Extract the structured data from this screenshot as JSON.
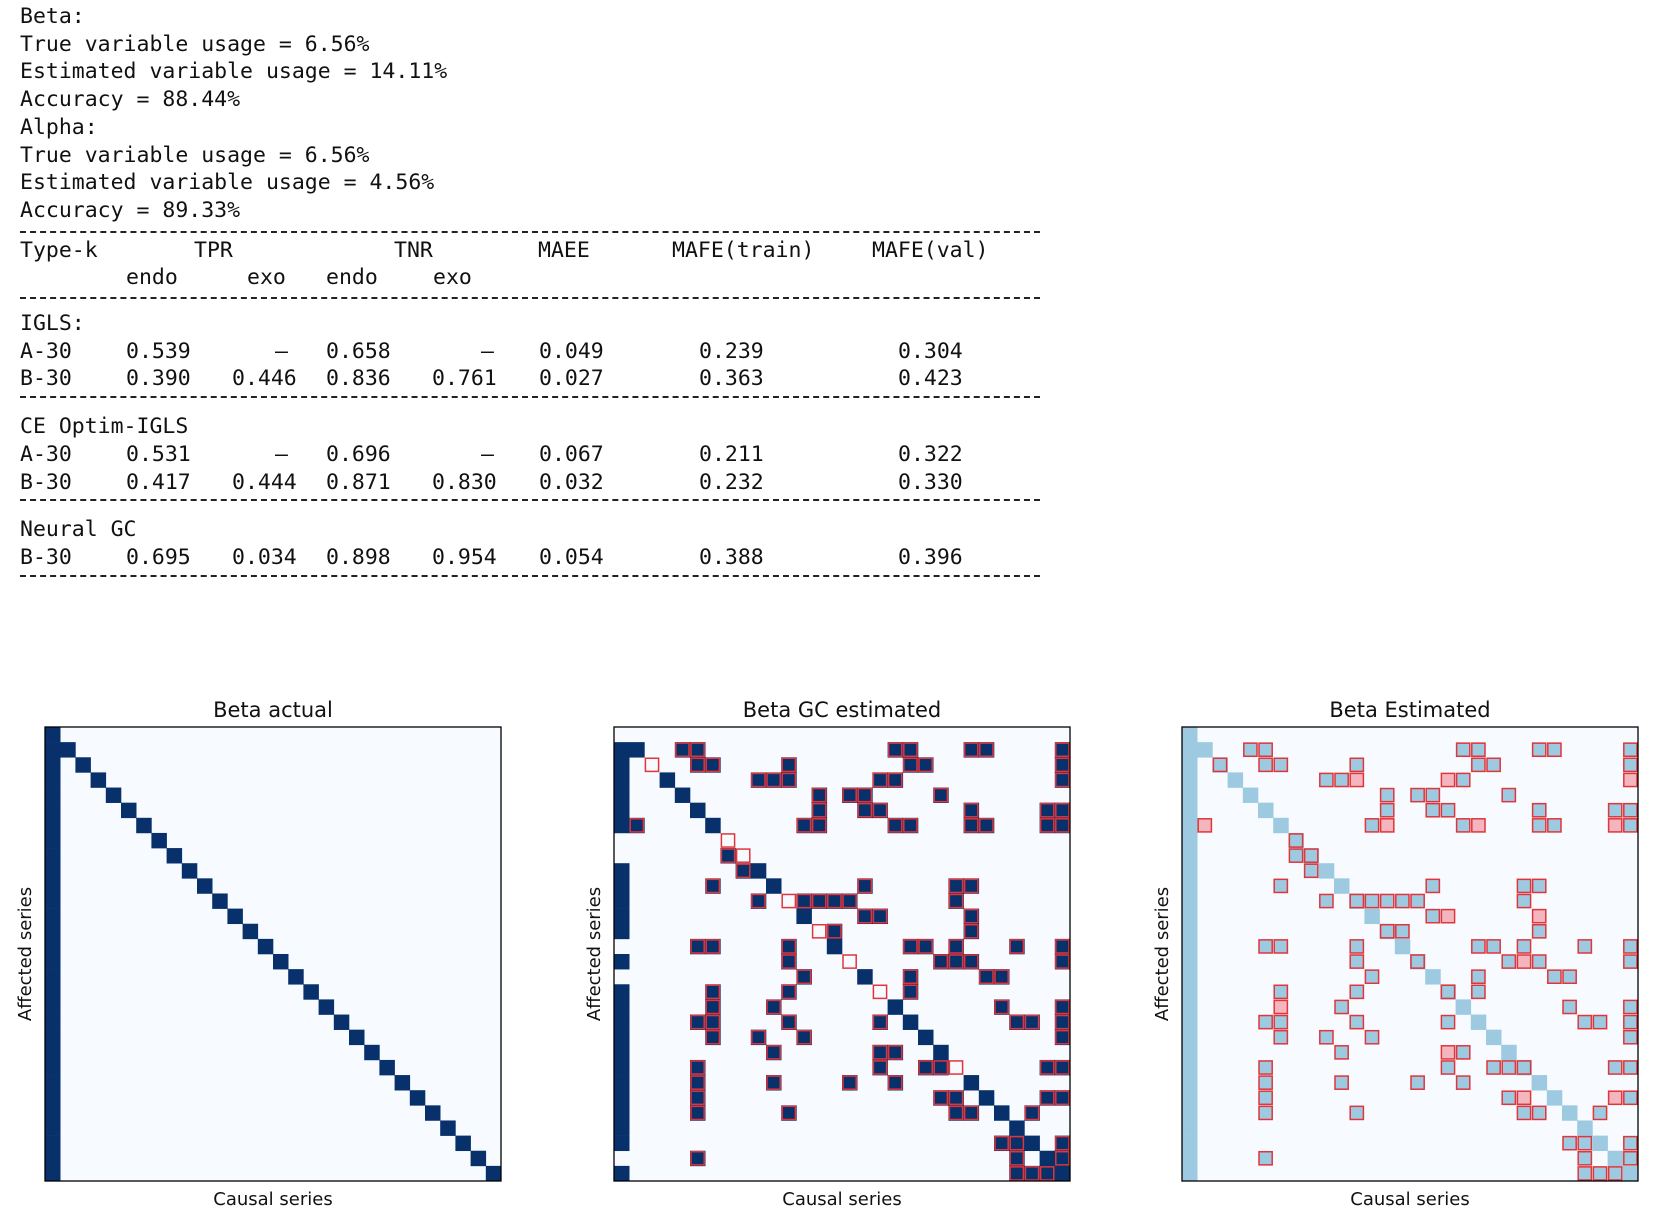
{
  "console": {
    "lines": [
      "Beta:",
      "True variable usage = 6.56%",
      "Estimated variable usage = 14.11%",
      "Accuracy = 88.44%",
      "Alpha:",
      "True variable usage = 6.56%",
      "Estimated variable usage = 4.56%",
      "Accuracy = 89.33%"
    ],
    "table": {
      "header": [
        "Type-k",
        "TPR",
        "TNR",
        "MAEE",
        "MAFE(train)",
        "MAFE(val)"
      ],
      "subheader": [
        "endo",
        "exo",
        "endo",
        "exo"
      ],
      "groups": [
        {
          "name": "IGLS:",
          "rows": [
            [
              "A-30",
              "0.539",
              "–",
              "0.658",
              "–",
              "0.049",
              "0.239",
              "0.304"
            ],
            [
              "B-30",
              "0.390",
              "0.446",
              "0.836",
              "0.761",
              "0.027",
              "0.363",
              "0.423"
            ]
          ]
        },
        {
          "name": "CE Optim-IGLS",
          "rows": [
            [
              "A-30",
              "0.531",
              "–",
              "0.696",
              "–",
              "0.067",
              "0.211",
              "0.322"
            ],
            [
              "B-30",
              "0.417",
              "0.444",
              "0.871",
              "0.830",
              "0.032",
              "0.232",
              "0.330"
            ]
          ]
        },
        {
          "name": "Neural GC",
          "rows": [
            [
              "B-30",
              "0.695",
              "0.034",
              "0.898",
              "0.954",
              "0.054",
              "0.388",
              "0.396"
            ]
          ]
        }
      ]
    }
  },
  "colors": {
    "background": "#f7fbff",
    "dark_blue": "#08306b",
    "light_blue": "#9ecae1",
    "pink": "#f4b6be",
    "outline": "#e0353a"
  },
  "chart_data": [
    {
      "type": "heatmap",
      "title": "Beta actual",
      "xlabel": "Causal series",
      "ylabel": "Affected series",
      "rows": 30,
      "cols": 30,
      "cmap": "Blues",
      "cells": [
        {
          "r": 0,
          "c": 0,
          "v": "active"
        },
        {
          "r": 1,
          "c": 0,
          "v": "active"
        },
        {
          "r": 2,
          "c": 0,
          "v": "active"
        },
        {
          "r": 3,
          "c": 0,
          "v": "active"
        },
        {
          "r": 4,
          "c": 0,
          "v": "active"
        },
        {
          "r": 5,
          "c": 0,
          "v": "active"
        },
        {
          "r": 6,
          "c": 0,
          "v": "active"
        },
        {
          "r": 7,
          "c": 0,
          "v": "active"
        },
        {
          "r": 8,
          "c": 0,
          "v": "active"
        },
        {
          "r": 9,
          "c": 0,
          "v": "active"
        },
        {
          "r": 10,
          "c": 0,
          "v": "active"
        },
        {
          "r": 11,
          "c": 0,
          "v": "active"
        },
        {
          "r": 12,
          "c": 0,
          "v": "active"
        },
        {
          "r": 13,
          "c": 0,
          "v": "active"
        },
        {
          "r": 14,
          "c": 0,
          "v": "active"
        },
        {
          "r": 15,
          "c": 0,
          "v": "active"
        },
        {
          "r": 16,
          "c": 0,
          "v": "active"
        },
        {
          "r": 17,
          "c": 0,
          "v": "active"
        },
        {
          "r": 18,
          "c": 0,
          "v": "active"
        },
        {
          "r": 19,
          "c": 0,
          "v": "active"
        },
        {
          "r": 20,
          "c": 0,
          "v": "active"
        },
        {
          "r": 21,
          "c": 0,
          "v": "active"
        },
        {
          "r": 22,
          "c": 0,
          "v": "active"
        },
        {
          "r": 23,
          "c": 0,
          "v": "active"
        },
        {
          "r": 24,
          "c": 0,
          "v": "active"
        },
        {
          "r": 25,
          "c": 0,
          "v": "active"
        },
        {
          "r": 26,
          "c": 0,
          "v": "active"
        },
        {
          "r": 27,
          "c": 0,
          "v": "active"
        },
        {
          "r": 28,
          "c": 0,
          "v": "active"
        },
        {
          "r": 29,
          "c": 0,
          "v": "active"
        },
        {
          "r": 1,
          "c": 1,
          "v": "active"
        },
        {
          "r": 2,
          "c": 2,
          "v": "active"
        },
        {
          "r": 3,
          "c": 3,
          "v": "active"
        },
        {
          "r": 4,
          "c": 4,
          "v": "active"
        },
        {
          "r": 5,
          "c": 5,
          "v": "active"
        },
        {
          "r": 6,
          "c": 6,
          "v": "active"
        },
        {
          "r": 7,
          "c": 7,
          "v": "active"
        },
        {
          "r": 8,
          "c": 8,
          "v": "active"
        },
        {
          "r": 9,
          "c": 9,
          "v": "active"
        },
        {
          "r": 10,
          "c": 10,
          "v": "active"
        },
        {
          "r": 11,
          "c": 11,
          "v": "active"
        },
        {
          "r": 12,
          "c": 12,
          "v": "active"
        },
        {
          "r": 13,
          "c": 13,
          "v": "active"
        },
        {
          "r": 14,
          "c": 14,
          "v": "active"
        },
        {
          "r": 15,
          "c": 15,
          "v": "active"
        },
        {
          "r": 16,
          "c": 16,
          "v": "active"
        },
        {
          "r": 17,
          "c": 17,
          "v": "active"
        },
        {
          "r": 18,
          "c": 18,
          "v": "active"
        },
        {
          "r": 19,
          "c": 19,
          "v": "active"
        },
        {
          "r": 20,
          "c": 20,
          "v": "active"
        },
        {
          "r": 21,
          "c": 21,
          "v": "active"
        },
        {
          "r": 22,
          "c": 22,
          "v": "active"
        },
        {
          "r": 23,
          "c": 23,
          "v": "active"
        },
        {
          "r": 24,
          "c": 24,
          "v": "active"
        },
        {
          "r": 25,
          "c": 25,
          "v": "active"
        },
        {
          "r": 26,
          "c": 26,
          "v": "active"
        },
        {
          "r": 27,
          "c": 27,
          "v": "active"
        },
        {
          "r": 28,
          "c": 28,
          "v": "active"
        },
        {
          "r": 29,
          "c": 29,
          "v": "active"
        }
      ]
    },
    {
      "type": "heatmap",
      "title": "Beta GC estimated",
      "xlabel": "Causal series",
      "ylabel": "Affected series",
      "rows": 30,
      "cols": 30,
      "cmap": "Blues",
      "filled_cells": [
        [
          1,
          0
        ],
        [
          2,
          0
        ],
        [
          3,
          0
        ],
        [
          4,
          0
        ],
        [
          5,
          0
        ],
        [
          6,
          0
        ],
        [
          9,
          0
        ],
        [
          10,
          0
        ],
        [
          11,
          0
        ],
        [
          12,
          0
        ],
        [
          13,
          0
        ],
        [
          15,
          0
        ],
        [
          17,
          0
        ],
        [
          18,
          0
        ],
        [
          19,
          0
        ],
        [
          20,
          0
        ],
        [
          21,
          0
        ],
        [
          22,
          0
        ],
        [
          23,
          0
        ],
        [
          24,
          0
        ],
        [
          25,
          0
        ],
        [
          26,
          0
        ],
        [
          27,
          0
        ],
        [
          29,
          0
        ],
        [
          1,
          1
        ],
        [
          6,
          1
        ],
        [
          3,
          3
        ],
        [
          4,
          4
        ],
        [
          5,
          5
        ],
        [
          6,
          6
        ],
        [
          9,
          9
        ],
        [
          10,
          10
        ],
        [
          12,
          12
        ],
        [
          14,
          14
        ],
        [
          16,
          16
        ],
        [
          18,
          18
        ],
        [
          19,
          19
        ],
        [
          20,
          20
        ],
        [
          21,
          21
        ],
        [
          23,
          23
        ],
        [
          24,
          24
        ],
        [
          25,
          25
        ],
        [
          26,
          26
        ],
        [
          27,
          27
        ],
        [
          28,
          28
        ],
        [
          29,
          29
        ],
        [
          1,
          4
        ],
        [
          1,
          5
        ],
        [
          2,
          5
        ],
        [
          2,
          6
        ],
        [
          14,
          5
        ],
        [
          14,
          6
        ],
        [
          22,
          5
        ],
        [
          23,
          5
        ],
        [
          24,
          5
        ],
        [
          25,
          5
        ],
        [
          28,
          5
        ],
        [
          1,
          18
        ],
        [
          1,
          19
        ],
        [
          2,
          19
        ],
        [
          2,
          20
        ],
        [
          1,
          23
        ],
        [
          1,
          24
        ],
        [
          2,
          29
        ],
        [
          1,
          29
        ],
        [
          3,
          29
        ],
        [
          5,
          29
        ],
        [
          6,
          29
        ],
        [
          6,
          28
        ],
        [
          5,
          28
        ],
        [
          3,
          9
        ],
        [
          3,
          10
        ],
        [
          2,
          11
        ],
        [
          3,
          11
        ],
        [
          4,
          13
        ],
        [
          5,
          13
        ],
        [
          6,
          13
        ],
        [
          6,
          12
        ],
        [
          4,
          15
        ],
        [
          4,
          16
        ],
        [
          5,
          16
        ],
        [
          5,
          17
        ],
        [
          3,
          18
        ],
        [
          3,
          17
        ],
        [
          4,
          21
        ],
        [
          5,
          23
        ],
        [
          6,
          23
        ],
        [
          6,
          24
        ],
        [
          6,
          19
        ],
        [
          6,
          18
        ],
        [
          10,
          6
        ],
        [
          19,
          5
        ],
        [
          17,
          6
        ],
        [
          18,
          6
        ],
        [
          19,
          6
        ],
        [
          20,
          6
        ],
        [
          8,
          7
        ],
        [
          9,
          8
        ],
        [
          11,
          9
        ],
        [
          11,
          12
        ],
        [
          11,
          13
        ],
        [
          11,
          14
        ],
        [
          11,
          15
        ],
        [
          14,
          11
        ],
        [
          15,
          11
        ],
        [
          16,
          12
        ],
        [
          17,
          11
        ],
        [
          19,
          11
        ],
        [
          21,
          10
        ],
        [
          23,
          10
        ],
        [
          25,
          11
        ],
        [
          18,
          10
        ],
        [
          20,
          9
        ],
        [
          20,
          12
        ],
        [
          23,
          15
        ],
        [
          19,
          17
        ],
        [
          19,
          19
        ],
        [
          21,
          18
        ],
        [
          21,
          17
        ],
        [
          22,
          17
        ],
        [
          23,
          18
        ],
        [
          22,
          20
        ],
        [
          22,
          21
        ],
        [
          24,
          21
        ],
        [
          24,
          22
        ],
        [
          25,
          22
        ],
        [
          25,
          23
        ],
        [
          27,
          25
        ],
        [
          27,
          26
        ],
        [
          28,
          26
        ],
        [
          29,
          26
        ],
        [
          29,
          27
        ],
        [
          29,
          28
        ],
        [
          10,
          16
        ],
        [
          12,
          17
        ],
        [
          12,
          16
        ],
        [
          14,
          19
        ],
        [
          14,
          20
        ],
        [
          16,
          19
        ],
        [
          17,
          19
        ],
        [
          15,
          21
        ],
        [
          15,
          22
        ],
        [
          15,
          23
        ],
        [
          16,
          24
        ],
        [
          19,
          26
        ],
        [
          10,
          22
        ],
        [
          11,
          22
        ],
        [
          10,
          23
        ],
        [
          12,
          23
        ],
        [
          13,
          23
        ],
        [
          16,
          24
        ],
        [
          18,
          25
        ],
        [
          14,
          29
        ],
        [
          15,
          29
        ],
        [
          18,
          29
        ],
        [
          19,
          29
        ],
        [
          20,
          29
        ],
        [
          22,
          29
        ],
        [
          24,
          29
        ],
        [
          16,
          25
        ],
        [
          14,
          26
        ],
        [
          18,
          25
        ],
        [
          19,
          27
        ],
        [
          22,
          28
        ],
        [
          25,
          27
        ],
        [
          24,
          28
        ],
        [
          27,
          29
        ],
        [
          28,
          29
        ],
        [
          29,
          29
        ],
        [
          12,
          16
        ],
        [
          13,
          14
        ],
        [
          14,
          22
        ]
      ],
      "outlined_cells": "estimate mask overlaid in red"
    },
    {
      "type": "heatmap",
      "title": "Beta Estimated",
      "xlabel": "Causal series",
      "ylabel": "Affected series",
      "rows": 30,
      "cols": 30,
      "cmap": "Blues",
      "filled_cells": "same layout as Beta GC estimated, light-blue actual, pink estimated"
    }
  ]
}
